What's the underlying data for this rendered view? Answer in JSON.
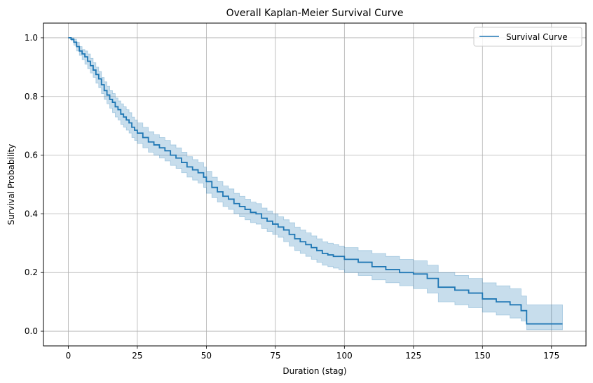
{
  "chart_data": {
    "type": "line",
    "title": "Overall Kaplan-Meier Survival Curve",
    "xlabel": "Duration (stag)",
    "ylabel": "Survival Probability",
    "xlim": [
      -9,
      187.5
    ],
    "ylim": [
      -0.05,
      1.05
    ],
    "xticks": [
      0,
      25,
      50,
      75,
      100,
      125,
      150,
      175
    ],
    "yticks": [
      0.0,
      0.2,
      0.4,
      0.6,
      0.8,
      1.0
    ],
    "xtick_labels": [
      "0",
      "25",
      "50",
      "75",
      "100",
      "125",
      "150",
      "175"
    ],
    "ytick_labels": [
      "0.0",
      "0.2",
      "0.4",
      "0.6",
      "0.8",
      "1.0"
    ],
    "grid": true,
    "legend_position": "top-right",
    "colors": {
      "line": "#1f77b4",
      "band": "#1f77b4",
      "grid": "#b0b0b0"
    },
    "series": [
      {
        "name": "Survival Curve",
        "step": "post",
        "x": [
          0,
          1,
          2,
          3,
          4,
          5,
          6,
          7,
          8,
          9,
          10,
          11,
          12,
          13,
          14,
          15,
          16,
          17,
          18,
          19,
          20,
          21,
          22,
          23,
          24,
          25,
          27,
          29,
          31,
          33,
          35,
          37,
          39,
          41,
          43,
          45,
          47,
          49,
          50,
          52,
          54,
          56,
          58,
          60,
          62,
          64,
          66,
          68,
          70,
          72,
          74,
          76,
          78,
          80,
          82,
          84,
          86,
          88,
          90,
          92,
          94,
          96,
          98,
          100,
          105,
          110,
          115,
          120,
          125,
          130,
          134,
          140,
          145,
          150,
          155,
          160,
          164,
          166,
          179
        ],
        "y": [
          1.0,
          0.995,
          0.985,
          0.97,
          0.955,
          0.945,
          0.935,
          0.92,
          0.905,
          0.89,
          0.875,
          0.86,
          0.84,
          0.82,
          0.805,
          0.79,
          0.78,
          0.765,
          0.755,
          0.74,
          0.73,
          0.72,
          0.71,
          0.695,
          0.685,
          0.675,
          0.66,
          0.645,
          0.635,
          0.625,
          0.615,
          0.6,
          0.59,
          0.575,
          0.56,
          0.55,
          0.54,
          0.525,
          0.51,
          0.49,
          0.475,
          0.46,
          0.45,
          0.435,
          0.425,
          0.415,
          0.405,
          0.4,
          0.385,
          0.375,
          0.365,
          0.355,
          0.345,
          0.33,
          0.315,
          0.305,
          0.295,
          0.285,
          0.275,
          0.265,
          0.26,
          0.255,
          0.255,
          0.245,
          0.235,
          0.22,
          0.21,
          0.2,
          0.195,
          0.18,
          0.15,
          0.14,
          0.13,
          0.11,
          0.1,
          0.09,
          0.07,
          0.025,
          0.025
        ],
        "ci_lower": [
          1.0,
          0.99,
          0.975,
          0.955,
          0.94,
          0.925,
          0.91,
          0.895,
          0.88,
          0.865,
          0.845,
          0.83,
          0.81,
          0.79,
          0.775,
          0.76,
          0.745,
          0.73,
          0.72,
          0.705,
          0.695,
          0.685,
          0.675,
          0.66,
          0.65,
          0.64,
          0.625,
          0.61,
          0.6,
          0.59,
          0.58,
          0.565,
          0.555,
          0.54,
          0.525,
          0.515,
          0.505,
          0.49,
          0.47,
          0.455,
          0.44,
          0.425,
          0.415,
          0.4,
          0.39,
          0.38,
          0.37,
          0.365,
          0.35,
          0.34,
          0.33,
          0.32,
          0.305,
          0.29,
          0.275,
          0.265,
          0.255,
          0.245,
          0.235,
          0.225,
          0.22,
          0.215,
          0.21,
          0.2,
          0.19,
          0.175,
          0.165,
          0.155,
          0.145,
          0.13,
          0.1,
          0.09,
          0.08,
          0.065,
          0.055,
          0.045,
          0.035,
          0.005,
          0.005
        ],
        "ci_upper": [
          1.0,
          1.0,
          0.995,
          0.985,
          0.97,
          0.96,
          0.955,
          0.945,
          0.93,
          0.915,
          0.9,
          0.885,
          0.865,
          0.85,
          0.835,
          0.82,
          0.81,
          0.795,
          0.785,
          0.775,
          0.765,
          0.755,
          0.745,
          0.73,
          0.72,
          0.71,
          0.695,
          0.68,
          0.67,
          0.66,
          0.65,
          0.635,
          0.625,
          0.61,
          0.595,
          0.585,
          0.575,
          0.56,
          0.545,
          0.525,
          0.51,
          0.495,
          0.485,
          0.47,
          0.46,
          0.45,
          0.44,
          0.435,
          0.42,
          0.41,
          0.4,
          0.39,
          0.38,
          0.37,
          0.355,
          0.345,
          0.335,
          0.325,
          0.315,
          0.305,
          0.3,
          0.295,
          0.29,
          0.285,
          0.275,
          0.265,
          0.255,
          0.245,
          0.24,
          0.225,
          0.2,
          0.19,
          0.18,
          0.165,
          0.155,
          0.145,
          0.12,
          0.09,
          0.09
        ]
      }
    ]
  }
}
